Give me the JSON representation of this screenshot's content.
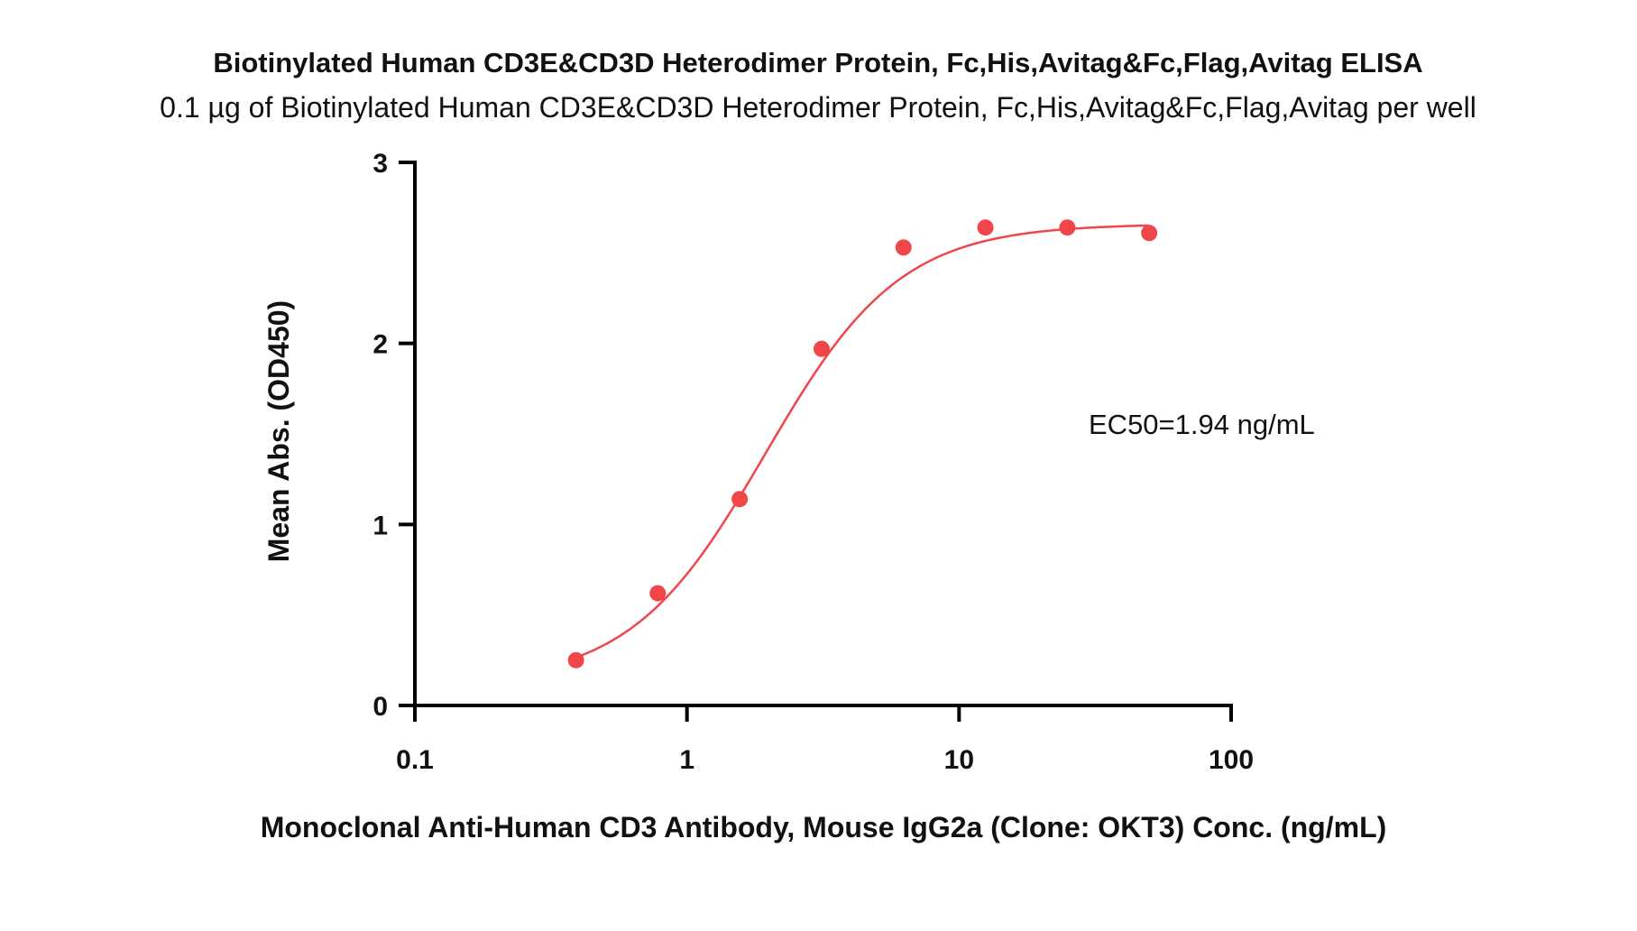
{
  "chart_data": {
    "type": "scatter",
    "title": "Biotinylated Human CD3E&CD3D Heterodimer Protein, Fc,His,Avitag&Fc,Flag,Avitag ELISA",
    "subtitle": "0.1 µg of Biotinylated Human CD3E&CD3D Heterodimer Protein, Fc,His,Avitag&Fc,Flag,Avitag per well",
    "xlabel": "Monoclonal Anti-Human CD3 Antibody, Mouse IgG2a (Clone: OKT3) Conc. (ng/mL)",
    "ylabel": "Mean Abs. (OD450)",
    "x_scale": "log",
    "xlim": [
      0.1,
      100
    ],
    "ylim": [
      0,
      3
    ],
    "x_ticks": [
      0.1,
      1,
      10,
      100
    ],
    "x_tick_labels": [
      "0.1",
      "1",
      "10",
      "100"
    ],
    "y_ticks": [
      0,
      1,
      2,
      3
    ],
    "y_tick_labels": [
      "0",
      "1",
      "2",
      "3"
    ],
    "grid": false,
    "color": "#f0464a",
    "series": [
      {
        "x": [
          0.391,
          0.781,
          1.5625,
          3.125,
          6.25,
          12.5,
          25,
          50
        ],
        "y": [
          0.25,
          0.62,
          1.14,
          1.97,
          2.53,
          2.64,
          2.64,
          2.61
        ]
      }
    ],
    "fit": {
      "model": "4PL",
      "bottom": 0.12,
      "top": 2.66,
      "ec50": 1.94,
      "hill": 1.75,
      "x_range": [
        0.391,
        50
      ]
    },
    "annotation": "EC50=1.94 ng/mL"
  }
}
